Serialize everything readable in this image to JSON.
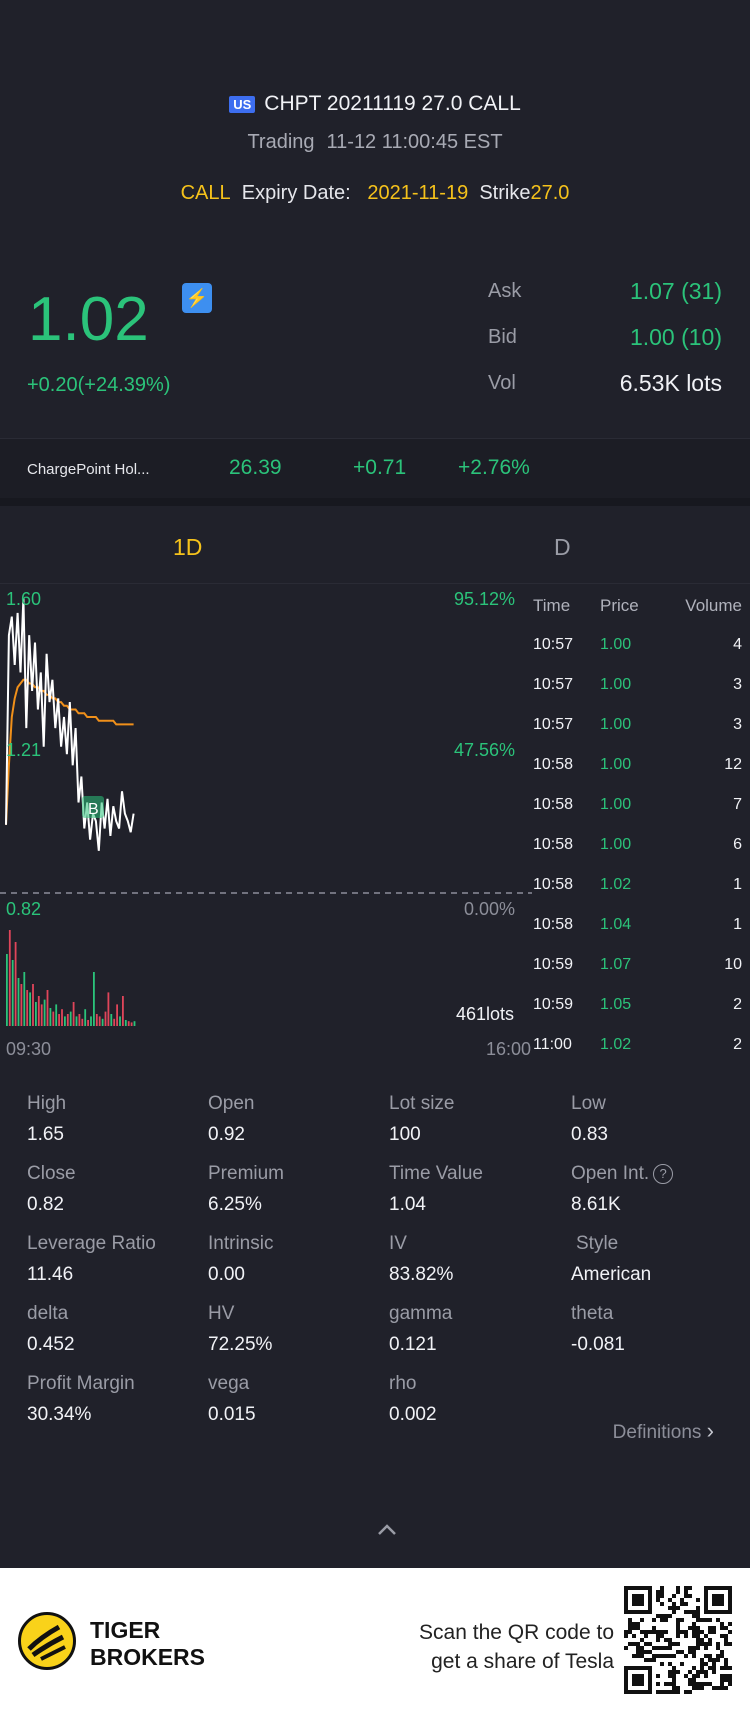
{
  "header": {
    "market_badge": "US",
    "contract": "CHPT 20211119 27.0 CALL",
    "status": "Trading",
    "timestamp": "11-12 11:00:45 EST",
    "type": "CALL",
    "expiry_label": "Expiry Date:",
    "expiry_date": "2021-11-19",
    "strike_label": "Strike",
    "strike_value": "27.0"
  },
  "price": {
    "last": "1.02",
    "change": "+0.20(+24.39%)",
    "flash_icon": "flash-icon",
    "ask_label": "Ask",
    "ask_value": "1.07 (31)",
    "bid_label": "Bid",
    "bid_value": "1.00 (10)",
    "vol_label": "Vol",
    "vol_value": "6.53K lots"
  },
  "underlying": {
    "name": "ChargePoint Hol...",
    "price": "26.39",
    "change": "+0.71",
    "change_pct": "+2.76%"
  },
  "tabs": {
    "intraday": "1D",
    "daily": "D"
  },
  "chart": {
    "y_high": "1.60",
    "y_mid": "1.21",
    "y_low": "0.82",
    "pct_high": "95.12%",
    "pct_mid": "47.56%",
    "pct_low": "0.00%",
    "volume_label": "461lots",
    "time_start": "09:30",
    "time_end": "16:00",
    "marker": "B",
    "colors": {
      "price_line": "#ffffff",
      "avg_line": "#f0901a",
      "up_bar": "#2bc37a",
      "down_bar": "#e0455a"
    }
  },
  "chart_data": {
    "type": "line",
    "ylim": [
      0.82,
      1.6
    ],
    "x_range": [
      "09:30",
      "16:00"
    ],
    "price": [
      0.99,
      1.5,
      1.55,
      1.42,
      1.56,
      1.4,
      1.6,
      1.25,
      1.5,
      1.35,
      1.48,
      1.3,
      1.4,
      1.2,
      1.45,
      1.32,
      1.38,
      1.25,
      1.33,
      1.2,
      1.28,
      1.18,
      1.32,
      1.15,
      1.25,
      1.05,
      1.12,
      0.98,
      1.05,
      0.95,
      1.02,
      1.0,
      0.92,
      1.05,
      0.98,
      1.06,
      0.96,
      1.04,
      1.0,
      0.98,
      1.08,
      1.02,
      1.0,
      0.97,
      1.02
    ],
    "avg": [
      0.99,
      1.15,
      1.28,
      1.33,
      1.36,
      1.37,
      1.38,
      1.38,
      1.37,
      1.37,
      1.36,
      1.36,
      1.35,
      1.35,
      1.34,
      1.34,
      1.33,
      1.33,
      1.32,
      1.32,
      1.31,
      1.31,
      1.3,
      1.3,
      1.3,
      1.29,
      1.29,
      1.29,
      1.28,
      1.28,
      1.28,
      1.28,
      1.27,
      1.27,
      1.27,
      1.27,
      1.27,
      1.27,
      1.26,
      1.26,
      1.26,
      1.26,
      1.26,
      1.26,
      1.26
    ],
    "volume": [
      60,
      80,
      55,
      70,
      40,
      35,
      45,
      30,
      28,
      35,
      20,
      25,
      18,
      22,
      30,
      15,
      12,
      18,
      10,
      14,
      8,
      10,
      12,
      20,
      8,
      10,
      6,
      14,
      5,
      8,
      45,
      10,
      8,
      6,
      12,
      28,
      10,
      6,
      18,
      8,
      25,
      5,
      4,
      3,
      4
    ],
    "volume_up": [
      true,
      false,
      true,
      false,
      true,
      false,
      true,
      false,
      true,
      false,
      true,
      false,
      false,
      true,
      false,
      true,
      false,
      true,
      false,
      false,
      true,
      false,
      true,
      false,
      true,
      false,
      false,
      true,
      false,
      true,
      true,
      false,
      false,
      true,
      false,
      false,
      true,
      false,
      false,
      true,
      false,
      true,
      false,
      false,
      true
    ]
  },
  "trades": {
    "headers": {
      "time": "Time",
      "price": "Price",
      "volume": "Volume"
    },
    "rows": [
      {
        "time": "10:57",
        "price": "1.00",
        "volume": "4"
      },
      {
        "time": "10:57",
        "price": "1.00",
        "volume": "3"
      },
      {
        "time": "10:57",
        "price": "1.00",
        "volume": "3"
      },
      {
        "time": "10:58",
        "price": "1.00",
        "volume": "12"
      },
      {
        "time": "10:58",
        "price": "1.00",
        "volume": "7"
      },
      {
        "time": "10:58",
        "price": "1.00",
        "volume": "6"
      },
      {
        "time": "10:58",
        "price": "1.02",
        "volume": "1"
      },
      {
        "time": "10:58",
        "price": "1.04",
        "volume": "1"
      },
      {
        "time": "10:59",
        "price": "1.07",
        "volume": "10"
      },
      {
        "time": "10:59",
        "price": "1.05",
        "volume": "2"
      },
      {
        "time": "11:00",
        "price": "1.02",
        "volume": "2"
      }
    ]
  },
  "stats": [
    {
      "label": "High",
      "value": "1.65"
    },
    {
      "label": "Open",
      "value": "0.92"
    },
    {
      "label": "Lot size",
      "value": "100"
    },
    {
      "label": "Low",
      "value": "0.83"
    },
    {
      "label": "Close",
      "value": "0.82"
    },
    {
      "label": "Premium",
      "value": "6.25%"
    },
    {
      "label": "Time Value",
      "value": "1.04"
    },
    {
      "label": "Open Int.",
      "value": "8.61K"
    },
    {
      "label": "Leverage Ratio",
      "value": "11.46"
    },
    {
      "label": "Intrinsic",
      "value": "0.00"
    },
    {
      "label": "IV",
      "value": "83.82%"
    },
    {
      "label": "Style",
      "value": "American"
    },
    {
      "label": "delta",
      "value": "0.452"
    },
    {
      "label": "HV",
      "value": "72.25%"
    },
    {
      "label": "gamma",
      "value": "0.121"
    },
    {
      "label": "theta",
      "value": "-0.081"
    },
    {
      "label": "Profit Margin",
      "value": "30.34%"
    },
    {
      "label": "vega",
      "value": "0.015"
    },
    {
      "label": "rho",
      "value": "0.002"
    }
  ],
  "help_icon": "?",
  "definitions": "Definitions",
  "footer": {
    "brand_line1": "TIGER",
    "brand_line2": "BROKERS",
    "promo_line1": "Scan the QR code to",
    "promo_line2": "get a share of Tesla"
  }
}
